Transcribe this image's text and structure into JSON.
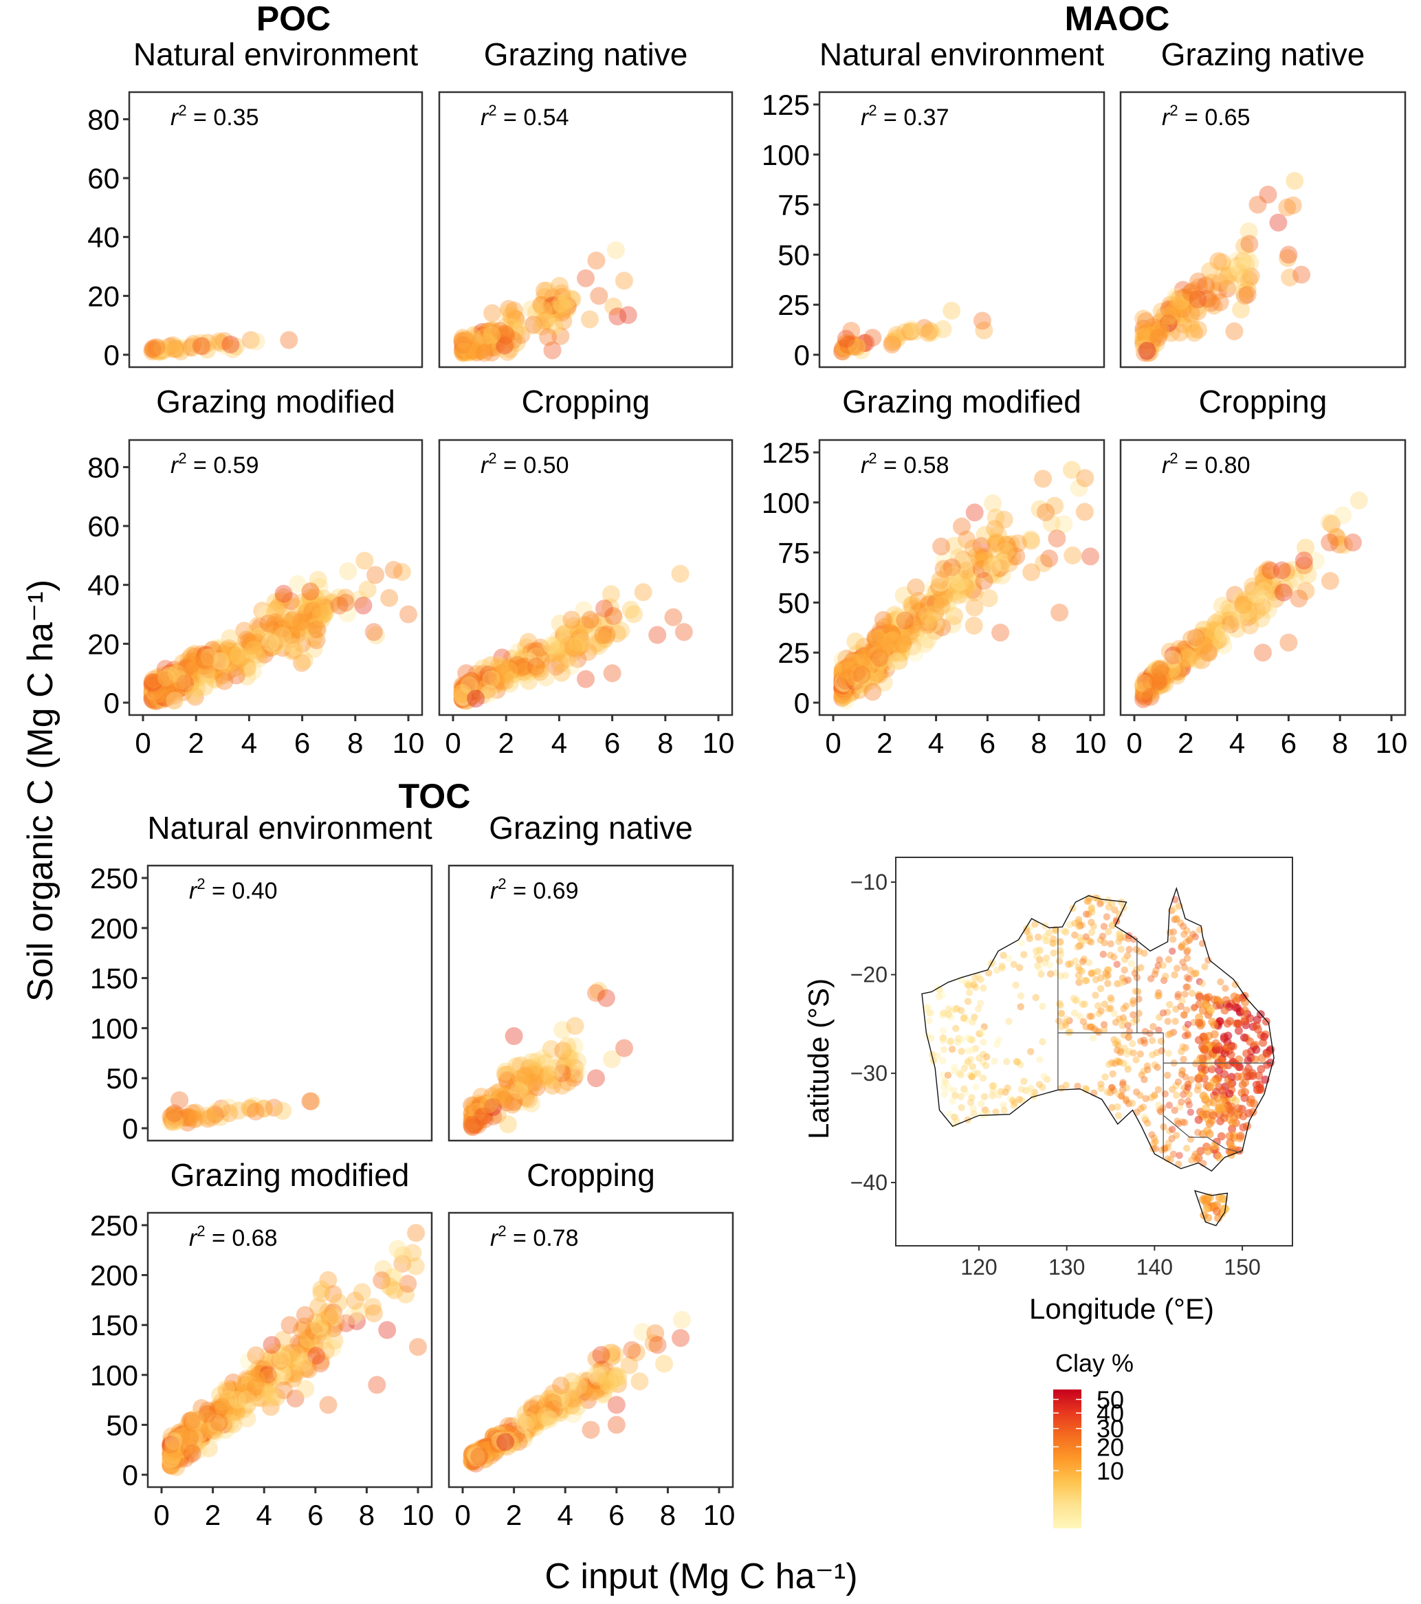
{
  "chart_data": {
    "type": "scatter",
    "title": "",
    "xlabel": "C input (Mg C  ha⁻¹)",
    "ylabel": "Soil organic C (Mg C  ha⁻¹)",
    "xlim": [
      0,
      10
    ],
    "xticks": [
      "0",
      "2",
      "4",
      "6",
      "8",
      "10"
    ],
    "color_scale": {
      "title": "Clay %",
      "ticks": [
        "50",
        "40",
        "30",
        "20",
        "10"
      ],
      "tick_values": [
        50,
        40,
        30,
        20,
        10
      ],
      "range": [
        0,
        58
      ],
      "colors": [
        "#FFF7BC",
        "#FEE391",
        "#FEC44F",
        "#FE9929",
        "#F46D1F",
        "#E8381E",
        "#C7001E"
      ]
    },
    "groups": [
      {
        "name": "POC",
        "ylim": [
          0,
          85
        ],
        "yticks": [
          "0",
          "20",
          "40",
          "60",
          "80"
        ],
        "ytick_values": [
          0,
          20,
          40,
          60,
          80
        ],
        "panels": [
          {
            "name": "Natural environment",
            "r2_label": "= 0.35",
            "slope": 0.9,
            "intercept": 1.2,
            "spread": 1.2,
            "xmax": 6.0,
            "n": 40,
            "hi": [
              [
                2.2,
                3
              ],
              [
                3.3,
                3.5
              ],
              [
                5.5,
                5
              ]
            ]
          },
          {
            "name": "Grazing native",
            "r2_label": "= 0.54",
            "slope": 3.6,
            "intercept": 0.5,
            "spread": 5,
            "xmax": 6.5,
            "n": 140,
            "hi": [
              [
                5.4,
                32
              ],
              [
                5.0,
                26
              ],
              [
                6.2,
                13
              ],
              [
                6.6,
                13.5
              ],
              [
                5.5,
                20
              ]
            ]
          },
          {
            "name": "Grazing modified",
            "r2_label": "= 0.59",
            "slope": 4.3,
            "intercept": 2,
            "spread": 5,
            "xmax": 10,
            "n": 420,
            "hi": [
              [
                5.3,
                37
              ],
              [
                10.0,
                30
              ],
              [
                8.3,
                33
              ],
              [
                7.4,
                33
              ],
              [
                8.7,
                24
              ]
            ]
          },
          {
            "name": "Cropping",
            "r2_label": "= 0.50",
            "slope": 4.2,
            "intercept": 1.5,
            "spread": 4,
            "xmax": 8.8,
            "n": 240,
            "hi": [
              [
                5.7,
                32
              ],
              [
                8.3,
                29
              ],
              [
                8.7,
                24
              ],
              [
                6.0,
                10
              ],
              [
                5.0,
                8
              ],
              [
                7.7,
                23
              ]
            ]
          }
        ]
      },
      {
        "name": "MAOC",
        "ylim": [
          0,
          125
        ],
        "yticks": [
          "0",
          "25",
          "50",
          "75",
          "100",
          "125"
        ],
        "ytick_values": [
          0,
          25,
          50,
          75,
          100,
          125
        ],
        "panels": [
          {
            "name": "Natural environment",
            "r2_label": "= 0.37",
            "slope": 2.4,
            "intercept": 2.5,
            "spread": 2.5,
            "xmax": 6.2,
            "n": 40,
            "hi": [
              [
                0.7,
                12
              ],
              [
                0.5,
                8
              ],
              [
                5.8,
                17
              ]
            ]
          },
          {
            "name": "Grazing native",
            "r2_label": "= 0.65",
            "slope": 9.5,
            "intercept": 3,
            "spread": 9,
            "xmax": 6.5,
            "n": 140,
            "hi": [
              [
                5.2,
                80
              ],
              [
                4.8,
                75
              ],
              [
                5.6,
                66
              ],
              [
                6.5,
                40
              ],
              [
                4.4,
                30
              ],
              [
                6.0,
                50
              ]
            ]
          },
          {
            "name": "Grazing modified",
            "r2_label": "= 0.58",
            "slope": 11,
            "intercept": 5,
            "spread": 10,
            "xmax": 10,
            "n": 420,
            "hi": [
              [
                5.5,
                95
              ],
              [
                5.0,
                88
              ],
              [
                4.2,
                78
              ],
              [
                10.0,
                73
              ],
              [
                8.7,
                82
              ],
              [
                8.4,
                72
              ],
              [
                8.8,
                45
              ],
              [
                6.5,
                35
              ]
            ]
          },
          {
            "name": "Cropping",
            "r2_label": "= 0.80",
            "slope": 10,
            "intercept": 3,
            "spread": 6,
            "xmax": 8.8,
            "n": 240,
            "hi": [
              [
                8.5,
                80
              ],
              [
                7.6,
                80
              ],
              [
                6.6,
                71
              ],
              [
                5.3,
                66
              ],
              [
                5.8,
                55
              ],
              [
                6.0,
                30
              ],
              [
                5.0,
                25
              ],
              [
                6.4,
                52
              ]
            ]
          }
        ]
      },
      {
        "name": "TOC",
        "ylim": [
          0,
          250
        ],
        "yticks": [
          "0",
          "50",
          "100",
          "150",
          "200",
          "250"
        ],
        "ytick_values": [
          0,
          50,
          100,
          150,
          200,
          250
        ],
        "panels": [
          {
            "name": "Natural environment",
            "r2_label": "= 0.40",
            "slope": 3.2,
            "intercept": 7,
            "spread": 4,
            "xmax": 6.2,
            "n": 40,
            "hi": [
              [
                0.7,
                28
              ],
              [
                0.5,
                15
              ],
              [
                5.8,
                27
              ]
            ]
          },
          {
            "name": "Grazing native",
            "r2_label": "= 0.69",
            "slope": 16,
            "intercept": 5,
            "spread": 14,
            "xmax": 6.5,
            "n": 140,
            "hi": [
              [
                5.2,
                135
              ],
              [
                5.6,
                130
              ],
              [
                6.3,
                80
              ],
              [
                5.2,
                50
              ],
              [
                2.0,
                92
              ]
            ]
          },
          {
            "name": "Grazing modified",
            "r2_label": "= 0.68",
            "slope": 20,
            "intercept": 15,
            "spread": 16,
            "xmax": 10,
            "n": 420,
            "hi": [
              [
                5.6,
                160
              ],
              [
                5.0,
                150
              ],
              [
                4.3,
                130
              ],
              [
                10.0,
                128
              ],
              [
                8.8,
                145
              ],
              [
                8.4,
                90
              ],
              [
                6.5,
                70
              ]
            ]
          },
          {
            "name": "Cropping",
            "r2_label": "= 0.78",
            "slope": 16,
            "intercept": 10,
            "spread": 10,
            "xmax": 8.8,
            "n": 240,
            "hi": [
              [
                8.5,
                137
              ],
              [
                7.6,
                130
              ],
              [
                6.6,
                125
              ],
              [
                5.4,
                120
              ],
              [
                6.0,
                70
              ],
              [
                5.0,
                45
              ],
              [
                6.0,
                50
              ]
            ]
          }
        ]
      }
    ],
    "map": {
      "type": "scatter-map",
      "xlabel": "Longitude (°E)",
      "ylabel": "Latitude (°S)",
      "xlim": [
        111,
        156
      ],
      "ylim": [
        -46,
        -8
      ],
      "xticks": [
        "120",
        "130",
        "140",
        "150"
      ],
      "xtick_values": [
        120,
        130,
        140,
        150
      ],
      "yticks": [
        "−10",
        "−20",
        "−30",
        "−40"
      ],
      "ytick_values": [
        -10,
        -20,
        -30,
        -40
      ],
      "point_count_approx": 900,
      "note": "Sample sites across Australia coloured by clay %; highest clay in eastern Queensland / northern NSW"
    }
  }
}
